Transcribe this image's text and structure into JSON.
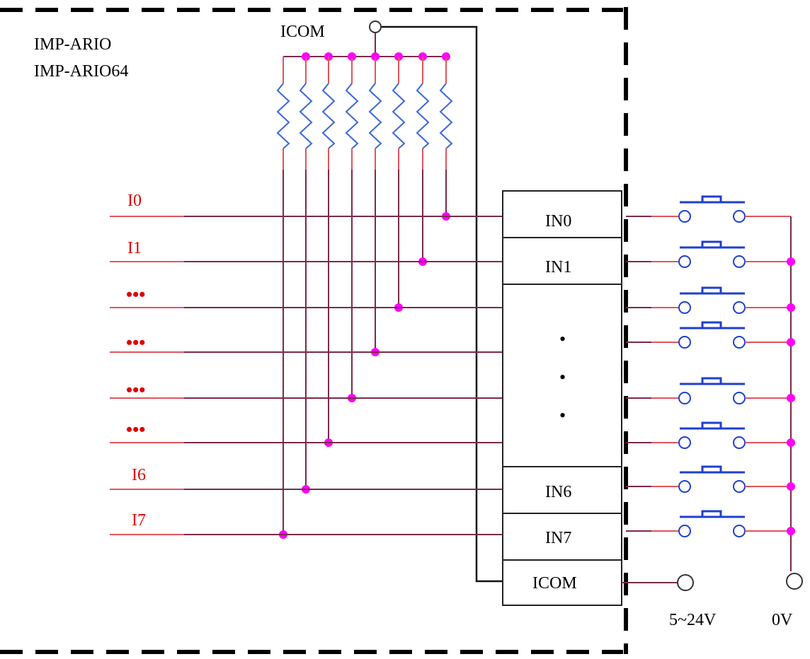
{
  "module_labels": [
    "IMP-ARIO",
    "IMP-ARIO64"
  ],
  "icom_top_label": "ICOM",
  "input_labels": [
    "I0",
    "I1",
    "•••",
    "•••",
    "•••",
    "•••",
    "I6",
    "I7"
  ],
  "terminal_labels": [
    "IN0",
    "IN1",
    "IN6",
    "IN7",
    "ICOM"
  ],
  "ellipsis_dot": "•",
  "power_labels": [
    "5~24V",
    "0V"
  ]
}
